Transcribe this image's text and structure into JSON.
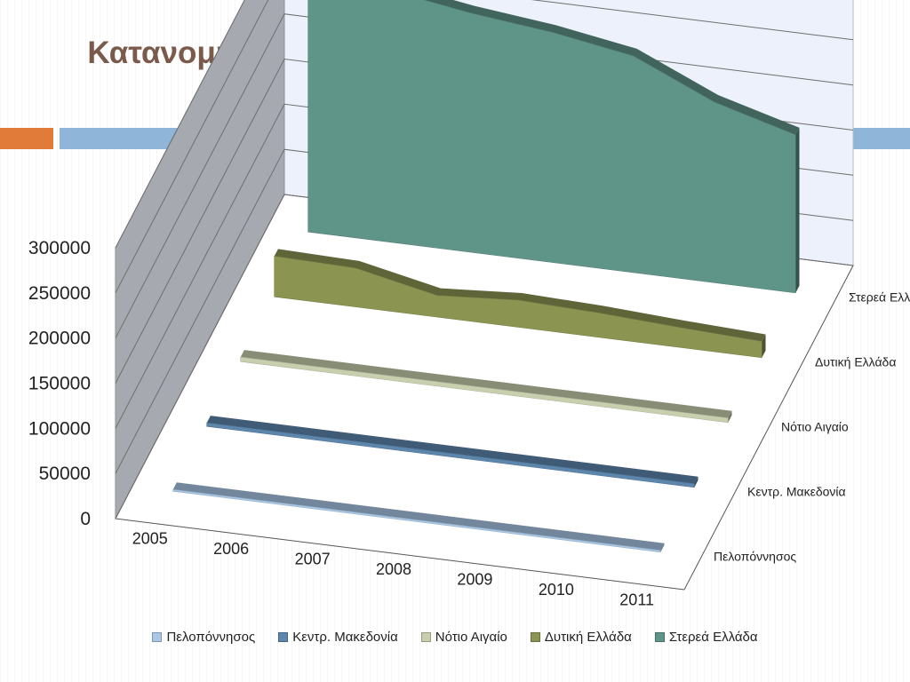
{
  "title": "Κατανομή Εισιτηρίων στις Επιχειρήσεις ΕΤΑ κατά Περιφέρεια (2005 – 2011)",
  "chart_data": {
    "type": "area",
    "style": "3d",
    "categories": [
      "2005",
      "2006",
      "2007",
      "2008",
      "2009",
      "2010",
      "2011"
    ],
    "ylim": [
      0,
      300000
    ],
    "yticks": [
      "0",
      "50000",
      "100000",
      "150000",
      "200000",
      "250000",
      "300000"
    ],
    "grid": true,
    "legend_position": "bottom",
    "series": [
      {
        "name": "Πελοπόννησος",
        "color": "#a9c7e6",
        "values": [
          2000,
          2000,
          2000,
          2000,
          2000,
          2000,
          2000
        ]
      },
      {
        "name": "Κεντρ. Μακεδονία",
        "color": "#5d86ad",
        "values": [
          4000,
          4000,
          4000,
          4000,
          4000,
          4000,
          4000
        ]
      },
      {
        "name": "Νότιο Αιγαίο",
        "color": "#c8cfae",
        "values": [
          5000,
          5000,
          5000,
          5000,
          5000,
          5000,
          5000
        ]
      },
      {
        "name": "Δυτική Ελλάδα",
        "color": "#8c9452",
        "values": [
          45000,
          43000,
          24000,
          30000,
          27000,
          22000,
          18000
        ]
      },
      {
        "name": "Στερεά Ελλάδα",
        "color": "#5f9488",
        "values": [
          289000,
          279000,
          265000,
          255000,
          240000,
          200000,
          175000
        ]
      }
    ]
  }
}
